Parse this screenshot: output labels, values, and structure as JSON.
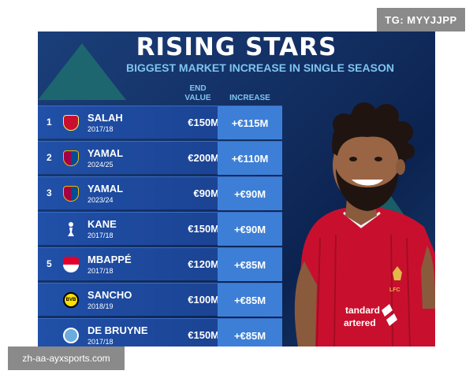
{
  "poster": {
    "title": "RISING STARS",
    "subtitle": "BIGGEST MARKET INCREASE IN SINGLE SEASON",
    "col_end_value": "END\nVALUE",
    "col_increase": "INCREASE"
  },
  "rows": [
    {
      "rank": "1",
      "badge_icon": "liverpool-crest-icon",
      "badge_color": "#c8102e",
      "name": "SALAH",
      "season": "2017/18",
      "value": "€150M",
      "increase": "+€115M"
    },
    {
      "rank": "2",
      "badge_icon": "barcelona-crest-icon",
      "badge_color": "#a50044",
      "name": "YAMAL",
      "season": "2024/25",
      "value": "€200M",
      "increase": "+€110M"
    },
    {
      "rank": "3",
      "badge_icon": "barcelona-crest-icon",
      "badge_color": "#a50044",
      "name": "YAMAL",
      "season": "2023/24",
      "value": "€90M",
      "increase": "+€90M"
    },
    {
      "rank": "",
      "badge_icon": "tottenham-crest-icon",
      "badge_color": "#ffffff",
      "name": "KANE",
      "season": "2017/18",
      "value": "€150M",
      "increase": "+€90M"
    },
    {
      "rank": "5",
      "badge_icon": "monaco-crest-icon",
      "badge_color": "#e4002b",
      "name": "MBAPPÉ",
      "season": "2017/18",
      "value": "€120M",
      "increase": "+€85M"
    },
    {
      "rank": "",
      "badge_icon": "dortmund-crest-icon",
      "badge_color": "#fde100",
      "name": "SANCHO",
      "season": "2018/19",
      "value": "€100M",
      "increase": "+€85M"
    },
    {
      "rank": "",
      "badge_icon": "man-city-crest-icon",
      "badge_color": "#6cabdd",
      "name": "DE BRUYNE",
      "season": "2017/18",
      "value": "€150M",
      "increase": "+€85M"
    }
  ],
  "player_image": {
    "icon": "salah-liverpool-photo",
    "shirt_text": "Standard Chartered",
    "shirt_color": "#c8102e"
  },
  "watermarks": {
    "top_right": "TG: MYYJJPP",
    "bottom_left": "zh-aa-ayxsports.com"
  },
  "colors": {
    "background": "#133064",
    "increase_cell": "#3d7fd6",
    "subtitle": "#7fc4ef"
  }
}
